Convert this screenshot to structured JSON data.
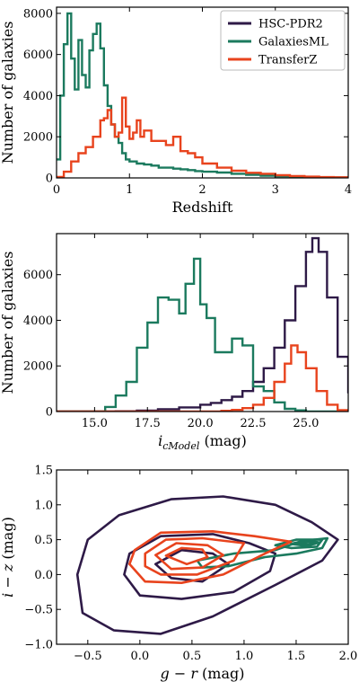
{
  "legend": {
    "entries": [
      {
        "name": "HSC-PDR2",
        "color": "#2e1a47"
      },
      {
        "name": "GalaxiesML",
        "color": "#1b7a5e"
      },
      {
        "name": "TransferZ",
        "color": "#e8431d"
      }
    ]
  },
  "chart_data": [
    {
      "type": "line",
      "subtype": "step-histogram",
      "xlabel": "Redshift",
      "ylabel": "Number of galaxies",
      "xlim": [
        0,
        4
      ],
      "ylim": [
        0,
        8300
      ],
      "xticks": [
        0,
        1,
        2,
        3,
        4
      ],
      "xtick_labels": [
        "0",
        "1",
        "2",
        "3",
        "4"
      ],
      "yticks": [
        0,
        2000,
        4000,
        6000,
        8000
      ],
      "ytick_labels": [
        "0",
        "2000",
        "4000",
        "6000",
        "8000"
      ],
      "legend_position": "top-right",
      "series": [
        {
          "name": "GalaxiesML",
          "color": "#1b7a5e",
          "x": [
            0,
            0.05,
            0.1,
            0.15,
            0.2,
            0.25,
            0.3,
            0.35,
            0.4,
            0.45,
            0.5,
            0.55,
            0.6,
            0.65,
            0.7,
            0.75,
            0.8,
            0.85,
            0.9,
            0.95,
            1.0,
            1.1,
            1.2,
            1.3,
            1.4,
            1.5,
            1.6,
            1.7,
            1.8,
            1.9,
            2.0,
            2.2,
            2.4,
            2.6,
            2.8,
            3.0,
            3.2,
            3.4,
            3.6,
            3.8,
            4.0
          ],
          "values": [
            900,
            4000,
            6500,
            8000,
            5800,
            4300,
            6700,
            5000,
            4400,
            6200,
            7000,
            7500,
            6300,
            4500,
            3500,
            2600,
            2000,
            1700,
            1200,
            900,
            800,
            700,
            650,
            600,
            500,
            500,
            450,
            420,
            380,
            330,
            300,
            260,
            200,
            150,
            110,
            80,
            60,
            45,
            30,
            20,
            10
          ]
        },
        {
          "name": "TransferZ",
          "color": "#e8431d",
          "x": [
            0,
            0.1,
            0.2,
            0.3,
            0.4,
            0.5,
            0.6,
            0.65,
            0.7,
            0.75,
            0.8,
            0.85,
            0.9,
            0.95,
            1.0,
            1.05,
            1.1,
            1.15,
            1.2,
            1.3,
            1.4,
            1.5,
            1.6,
            1.7,
            1.8,
            1.9,
            2.0,
            2.2,
            2.4,
            2.6,
            2.8,
            3.0,
            3.2,
            3.4,
            3.6,
            3.8,
            4.0
          ],
          "values": [
            50,
            300,
            800,
            1200,
            1500,
            2000,
            2800,
            2900,
            3300,
            2600,
            2000,
            2200,
            3900,
            2500,
            1900,
            2200,
            2800,
            2000,
            2300,
            1800,
            1800,
            1600,
            2000,
            1300,
            1200,
            1000,
            700,
            500,
            350,
            250,
            200,
            130,
            90,
            60,
            40,
            30,
            20
          ]
        }
      ]
    },
    {
      "type": "line",
      "subtype": "step-histogram",
      "xlabel": "i_cModel (mag)",
      "xlabel_main": "i",
      "xlabel_sub": "cModel",
      "xlabel_unit": " (mag)",
      "ylabel": "Number of galaxies",
      "xlim": [
        13.2,
        27.0
      ],
      "ylim": [
        0,
        7800
      ],
      "xticks": [
        15,
        17.5,
        20,
        22.5,
        25
      ],
      "xtick_labels": [
        "15.0",
        "17.5",
        "20.0",
        "22.5",
        "25.0"
      ],
      "yticks": [
        0,
        2000,
        4000,
        6000
      ],
      "ytick_labels": [
        "0",
        "2000",
        "4000",
        "6000"
      ],
      "series": [
        {
          "name": "HSC-PDR2",
          "color": "#2e1a47",
          "x": [
            13.2,
            15,
            16,
            17,
            18,
            19,
            20,
            20.5,
            21,
            21.5,
            22,
            22.5,
            23,
            23.5,
            24,
            24.5,
            25,
            25.3,
            25.6,
            26,
            26.5,
            27
          ],
          "values": [
            0,
            0,
            10,
            40,
            100,
            180,
            300,
            380,
            500,
            650,
            900,
            1300,
            1900,
            2800,
            4000,
            5500,
            7000,
            7600,
            7000,
            5000,
            2400,
            800
          ]
        },
        {
          "name": "GalaxiesML",
          "color": "#1b7a5e",
          "x": [
            13.2,
            15.0,
            15.5,
            16,
            16.5,
            17,
            17.5,
            18,
            18.5,
            19,
            19.3,
            19.7,
            20,
            20.3,
            20.7,
            21,
            21.5,
            22,
            22.5,
            23,
            23.5,
            24,
            24.5,
            25,
            27
          ],
          "values": [
            0,
            0,
            200,
            700,
            1300,
            2800,
            3900,
            5000,
            4900,
            4300,
            5600,
            6700,
            4700,
            4100,
            2600,
            2600,
            3200,
            2900,
            1100,
            900,
            400,
            120,
            50,
            0,
            0
          ]
        },
        {
          "name": "TransferZ",
          "color": "#e8431d",
          "x": [
            13.2,
            20,
            21,
            21.5,
            22,
            22.5,
            23,
            23.5,
            24,
            24.3,
            24.6,
            25,
            25.5,
            26,
            26.5,
            27
          ],
          "values": [
            0,
            0,
            30,
            70,
            150,
            300,
            600,
            1300,
            2100,
            2900,
            2600,
            1900,
            900,
            300,
            60,
            10
          ]
        }
      ]
    },
    {
      "type": "scatter",
      "subtype": "contour",
      "xlabel": "g − r (mag)",
      "xlabel_a": "g",
      "xlabel_b": "r",
      "xlabel_unit": " (mag)",
      "ylabel": "i − z (mag)",
      "ylabel_a": "i",
      "ylabel_b": "z",
      "ylabel_unit": " (mag)",
      "xlim": [
        -0.8,
        2.0
      ],
      "ylim": [
        -1.0,
        1.5
      ],
      "xticks": [
        -0.5,
        0.0,
        0.5,
        1.0,
        1.5,
        2.0
      ],
      "xtick_labels": [
        "−0.5",
        "0.0",
        "0.5",
        "1.0",
        "1.5",
        "2.0"
      ],
      "yticks": [
        -1.0,
        -0.5,
        0.0,
        0.5,
        1.0,
        1.5
      ],
      "ytick_labels": [
        "−1.0",
        "−0.5",
        "0.0",
        "0.5",
        "1.0",
        "1.5"
      ],
      "series": [
        {
          "name": "HSC-PDR2",
          "color": "#2e1a47",
          "contours": [
            [
              [
                -0.5,
                0.5
              ],
              [
                -0.2,
                0.85
              ],
              [
                0.3,
                1.08
              ],
              [
                0.8,
                1.12
              ],
              [
                1.3,
                1.0
              ],
              [
                1.65,
                0.75
              ],
              [
                1.9,
                0.5
              ],
              [
                1.75,
                0.2
              ],
              [
                1.3,
                -0.15
              ],
              [
                0.7,
                -0.6
              ],
              [
                0.2,
                -0.85
              ],
              [
                -0.25,
                -0.8
              ],
              [
                -0.55,
                -0.55
              ],
              [
                -0.6,
                0.0
              ]
            ],
            [
              [
                -0.1,
                0.3
              ],
              [
                0.2,
                0.55
              ],
              [
                0.7,
                0.58
              ],
              [
                1.05,
                0.45
              ],
              [
                1.3,
                0.3
              ],
              [
                1.25,
                0.05
              ],
              [
                0.9,
                -0.25
              ],
              [
                0.4,
                -0.35
              ],
              [
                0.0,
                -0.3
              ],
              [
                -0.15,
                0.0
              ]
            ],
            [
              [
                0.15,
                0.15
              ],
              [
                0.4,
                0.35
              ],
              [
                0.7,
                0.3
              ],
              [
                0.85,
                0.15
              ],
              [
                0.6,
                -0.1
              ],
              [
                0.3,
                -0.05
              ]
            ]
          ]
        },
        {
          "name": "GalaxiesML",
          "color": "#1b7a5e",
          "contours": [
            [
              [
                0.55,
                0.2
              ],
              [
                0.9,
                0.3
              ],
              [
                1.3,
                0.35
              ],
              [
                1.55,
                0.48
              ],
              [
                1.8,
                0.52
              ],
              [
                1.75,
                0.38
              ],
              [
                1.5,
                0.3
              ],
              [
                1.2,
                0.25
              ],
              [
                0.85,
                0.12
              ],
              [
                0.6,
                0.1
              ]
            ],
            [
              [
                1.3,
                0.42
              ],
              [
                1.5,
                0.5
              ],
              [
                1.75,
                0.5
              ],
              [
                1.7,
                0.4
              ],
              [
                1.45,
                0.38
              ]
            ],
            [
              [
                1.45,
                0.44
              ],
              [
                1.6,
                0.49
              ],
              [
                1.72,
                0.46
              ],
              [
                1.6,
                0.41
              ]
            ],
            [
              [
                1.52,
                0.45
              ],
              [
                1.62,
                0.47
              ],
              [
                1.68,
                0.44
              ],
              [
                1.58,
                0.43
              ]
            ]
          ]
        },
        {
          "name": "TransferZ",
          "color": "#e8431d",
          "contours": [
            [
              [
                -0.05,
                0.35
              ],
              [
                0.2,
                0.6
              ],
              [
                0.7,
                0.62
              ],
              [
                1.1,
                0.55
              ],
              [
                1.45,
                0.47
              ],
              [
                1.2,
                0.3
              ],
              [
                0.8,
                0.0
              ],
              [
                0.4,
                -0.12
              ],
              [
                0.05,
                -0.1
              ],
              [
                -0.1,
                0.15
              ]
            ],
            [
              [
                0.05,
                0.3
              ],
              [
                0.25,
                0.5
              ],
              [
                0.6,
                0.52
              ],
              [
                1.0,
                0.45
              ],
              [
                0.9,
                0.2
              ],
              [
                0.55,
                0.0
              ],
              [
                0.2,
                0.0
              ],
              [
                0.05,
                0.12
              ]
            ],
            [
              [
                0.15,
                0.28
              ],
              [
                0.35,
                0.45
              ],
              [
                0.65,
                0.42
              ],
              [
                0.8,
                0.28
              ],
              [
                0.6,
                0.1
              ],
              [
                0.3,
                0.08
              ]
            ],
            [
              [
                0.25,
                0.27
              ],
              [
                0.4,
                0.38
              ],
              [
                0.6,
                0.36
              ],
              [
                0.65,
                0.25
              ],
              [
                0.45,
                0.15
              ]
            ]
          ]
        }
      ]
    }
  ]
}
